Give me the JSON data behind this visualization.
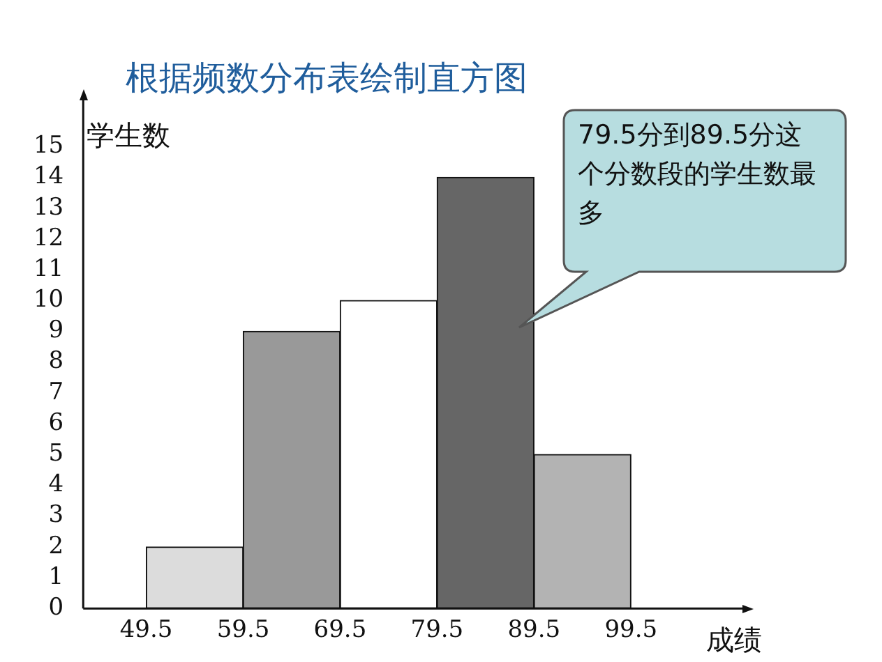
{
  "chart_data": {
    "type": "histogram",
    "title": "根据频数分布表绘制直方图",
    "xlabel": "成绩",
    "ylabel": "学生数",
    "bins": [
      49.5,
      59.5,
      69.5,
      79.5,
      89.5,
      99.5
    ],
    "values": [
      2,
      9,
      10,
      14,
      5
    ],
    "colors": [
      "#dcdcdc",
      "#999999",
      "#ffffff",
      "#666666",
      "#b3b3b3"
    ],
    "xlim": [
      43,
      111
    ],
    "xticks": [
      49.5,
      59.5,
      69.5,
      79.5,
      89.5,
      99.5
    ],
    "ylim": [
      0,
      16.5
    ],
    "yticks": [
      0,
      1,
      2,
      3,
      4,
      5,
      6,
      7,
      8,
      9,
      10,
      11,
      12,
      13,
      14,
      15
    ],
    "grid": false,
    "legend": false,
    "annotations": [
      "79.5分到89.5分这个分数段的学生数最多"
    ]
  }
}
